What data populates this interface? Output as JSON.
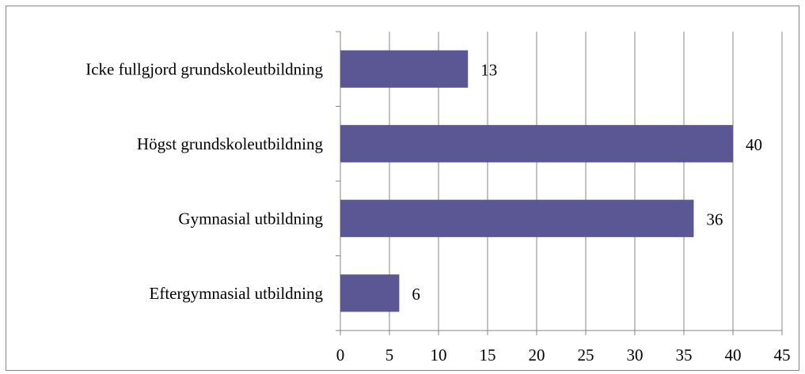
{
  "chart_data": {
    "type": "bar",
    "orientation": "horizontal",
    "categories": [
      "Icke fullgjord grundskoleutbildning",
      "Högst grundskoleutbildning",
      "Gymnasial utbildning",
      "Eftergymnasial utbildning"
    ],
    "values": [
      13,
      40,
      36,
      6
    ],
    "data_labels": [
      "13",
      "40",
      "36",
      "6"
    ],
    "xlim": [
      0,
      45
    ],
    "x_ticks": [
      0,
      5,
      10,
      15,
      20,
      25,
      30,
      35,
      40,
      45
    ],
    "x_tick_labels": [
      "0",
      "5",
      "10",
      "15",
      "20",
      "25",
      "30",
      "35",
      "40",
      "45"
    ],
    "grid": "vertical",
    "legend": "none",
    "colors": {
      "bar": "#5b5794",
      "grid": "#868686",
      "axis": "#868686",
      "text": "#000000"
    }
  }
}
